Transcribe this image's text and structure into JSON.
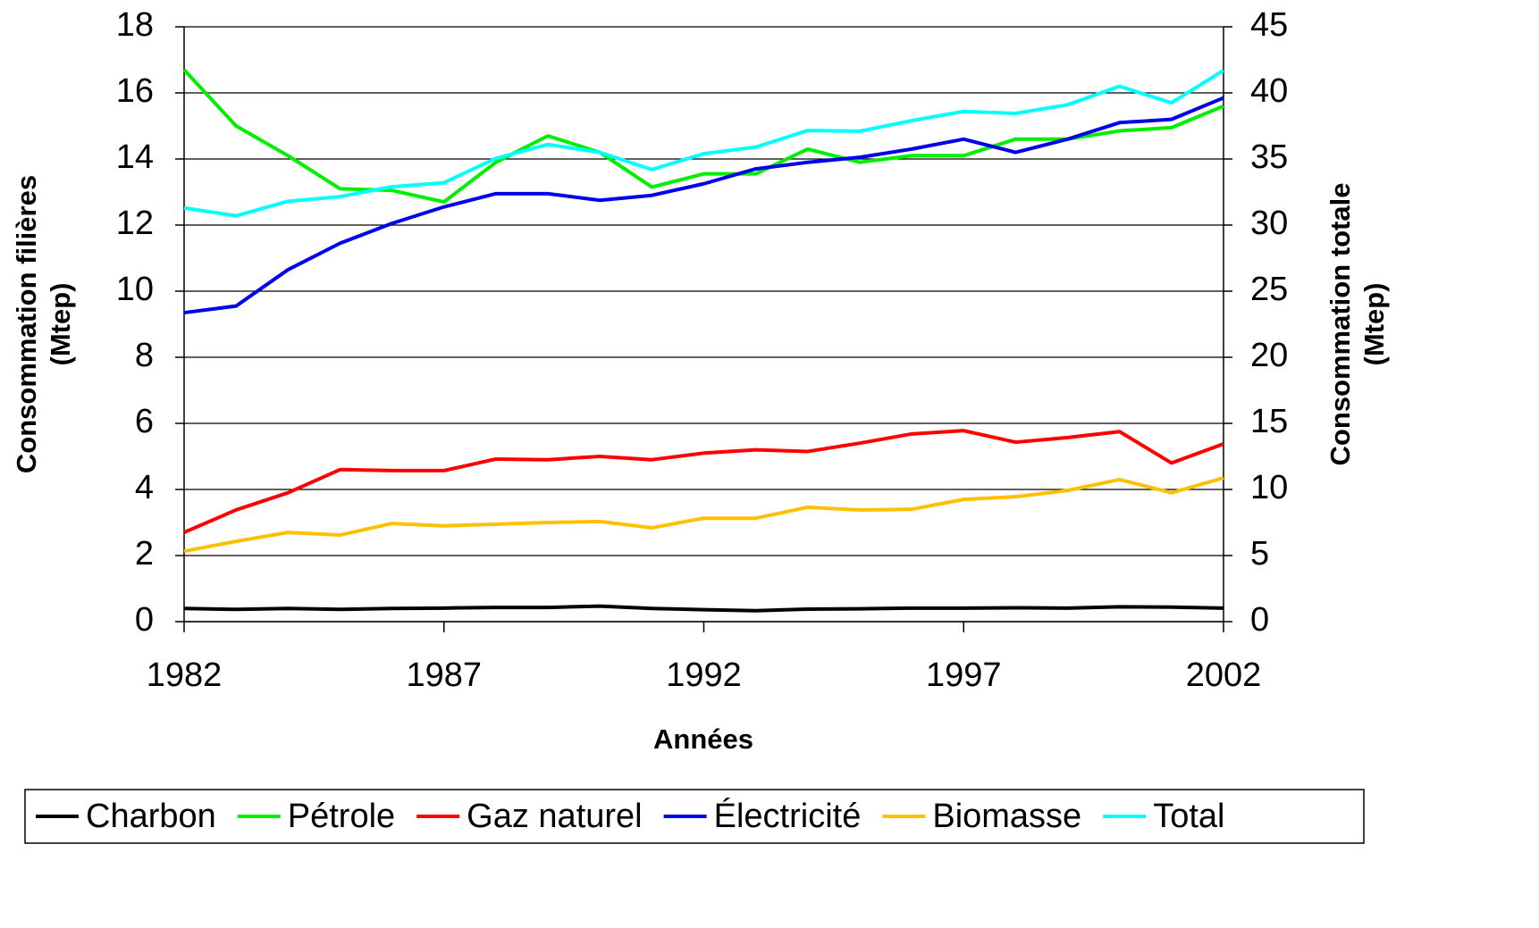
{
  "chart_data": {
    "type": "line",
    "xlabel": "Années",
    "ylabel": [
      "Consommation filières",
      "(Mtep)"
    ],
    "y2label": [
      "Consommation totale",
      "(Mtep)"
    ],
    "x": [
      1982,
      1983,
      1984,
      1985,
      1986,
      1987,
      1988,
      1989,
      1990,
      1991,
      1992,
      1993,
      1994,
      1995,
      1996,
      1997,
      1998,
      1999,
      2000,
      2001,
      2002
    ],
    "xlim": [
      1982,
      2002
    ],
    "xticks": [
      1982,
      1987,
      1992,
      1997,
      2002
    ],
    "ylim": [
      0,
      18
    ],
    "yticks": [
      0,
      2,
      4,
      6,
      8,
      10,
      12,
      14,
      16,
      18
    ],
    "y2lim": [
      0,
      45
    ],
    "y2ticks": [
      0,
      5,
      10,
      15,
      20,
      25,
      30,
      35,
      40,
      45
    ],
    "grid": true,
    "legend": "bottom",
    "series": [
      {
        "name": "Charbon",
        "color": "#000000",
        "values": [
          0.4,
          0.37,
          0.4,
          0.37,
          0.4,
          0.41,
          0.43,
          0.43,
          0.47,
          0.4,
          0.36,
          0.33,
          0.38,
          0.39,
          0.41,
          0.41,
          0.42,
          0.41,
          0.45,
          0.44,
          0.41
        ]
      },
      {
        "name": "Pétrole",
        "color": "#00ee00",
        "values": [
          16.7,
          15.0,
          14.1,
          13.1,
          13.05,
          12.7,
          13.9,
          14.7,
          14.2,
          13.15,
          13.55,
          13.55,
          14.3,
          13.9,
          14.1,
          14.1,
          14.6,
          14.6,
          14.85,
          14.95,
          15.6
        ]
      },
      {
        "name": "Gaz naturel",
        "color": "#ff0000",
        "values": [
          2.7,
          3.38,
          3.9,
          4.6,
          4.57,
          4.57,
          4.92,
          4.9,
          5.0,
          4.9,
          5.1,
          5.2,
          5.15,
          5.4,
          5.68,
          5.78,
          5.43,
          5.57,
          5.75,
          4.8,
          5.38
        ]
      },
      {
        "name": "Électricité",
        "color": "#0000ee",
        "values": [
          9.35,
          9.55,
          10.65,
          11.45,
          12.05,
          12.55,
          12.95,
          12.95,
          12.75,
          12.9,
          13.25,
          13.7,
          13.9,
          14.05,
          14.3,
          14.6,
          14.2,
          14.6,
          15.1,
          15.2,
          15.85
        ]
      },
      {
        "name": "Biomasse",
        "color": "#ffc000",
        "values": [
          2.13,
          2.43,
          2.7,
          2.62,
          2.97,
          2.9,
          2.95,
          3.0,
          3.03,
          2.84,
          3.13,
          3.13,
          3.46,
          3.38,
          3.4,
          3.7,
          3.78,
          3.97,
          4.3,
          3.9,
          4.35
        ]
      },
      {
        "name": "Total",
        "color": "#00ffff",
        "axis": "y2",
        "values": [
          31.3,
          30.7,
          31.8,
          32.15,
          32.9,
          33.2,
          35.05,
          36.1,
          35.5,
          34.2,
          35.4,
          35.9,
          37.15,
          37.1,
          37.9,
          38.6,
          38.45,
          39.1,
          40.5,
          39.25,
          41.7
        ]
      }
    ]
  }
}
